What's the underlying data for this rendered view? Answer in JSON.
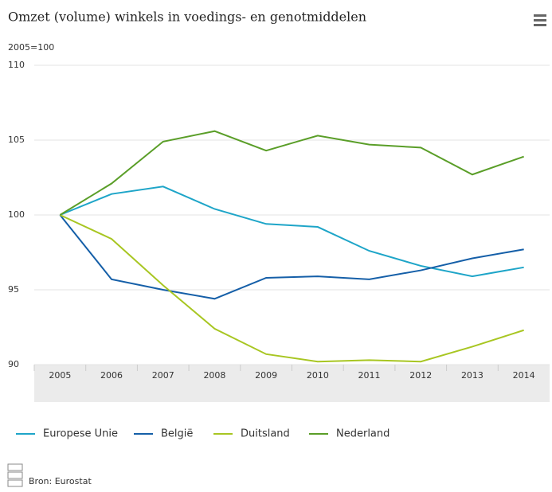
{
  "chart_data": {
    "type": "line",
    "title": "Omzet (volume) winkels in voedings- en genotmiddelen",
    "subtitle": "2005=100",
    "source": "Bron: Eurostat",
    "categories": [
      "2005",
      "2006",
      "2007",
      "2008",
      "2009",
      "2010",
      "2011",
      "2012",
      "2013",
      "2014"
    ],
    "series": [
      {
        "name": "Europese Unie",
        "color": "#1ea5c8",
        "values": [
          100,
          101.4,
          101.9,
          100.4,
          99.4,
          99.2,
          97.6,
          96.6,
          95.9,
          96.5
        ]
      },
      {
        "name": "België",
        "color": "#155fa8",
        "values": [
          100,
          95.7,
          95.0,
          94.4,
          95.8,
          95.9,
          95.7,
          96.3,
          97.1,
          97.7
        ]
      },
      {
        "name": "Duitsland",
        "color": "#a8c622",
        "values": [
          100,
          98.4,
          95.3,
          92.4,
          90.7,
          90.2,
          90.3,
          90.2,
          91.2,
          92.3
        ]
      },
      {
        "name": "Nederland",
        "color": "#5a9e28",
        "values": [
          100,
          102.1,
          104.9,
          105.6,
          104.3,
          105.3,
          104.7,
          104.5,
          102.7,
          103.9
        ]
      }
    ],
    "ylim": [
      90,
      110
    ],
    "yticks": [
      90,
      95,
      100,
      105,
      110
    ],
    "grid": true
  }
}
